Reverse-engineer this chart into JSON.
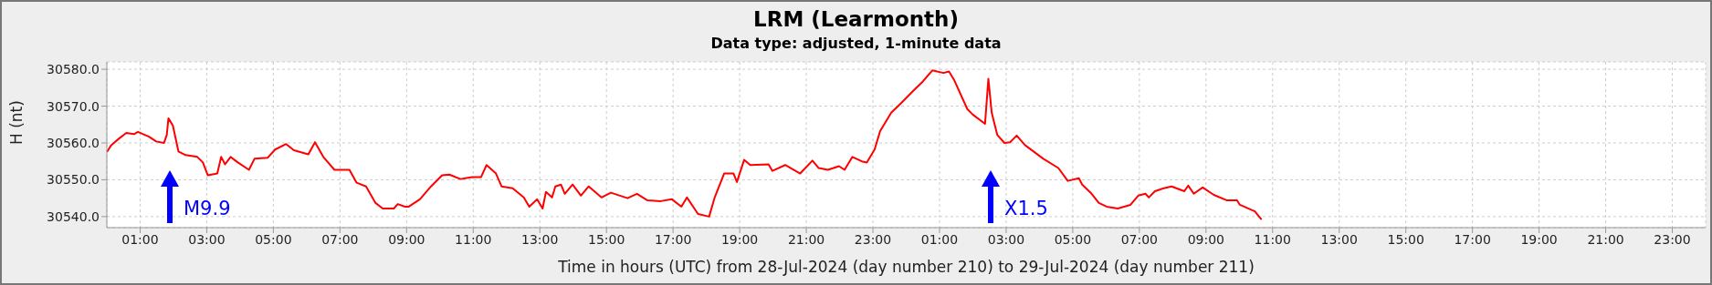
{
  "chart_data": {
    "type": "line",
    "title": "LRM (Learmonth)",
    "subtitle": "Data type: adjusted, 1-minute data",
    "xlabel": "Time in hours (UTC) from 28-Jul-2024 (day number 210) to 29-Jul-2024 (day number 211)",
    "ylabel": "H (nt)",
    "x": [
      "2024-07-28T00:00",
      "2024-07-28T00:08",
      "2024-07-28T00:22",
      "2024-07-28T00:35",
      "2024-07-28T00:49",
      "2024-07-28T00:56",
      "2024-07-28T01:16",
      "2024-07-28T01:29",
      "2024-07-28T01:43",
      "2024-07-28T01:48",
      "2024-07-28T01:51",
      "2024-07-28T01:59",
      "2024-07-28T02:09",
      "2024-07-28T02:22",
      "2024-07-28T02:43",
      "2024-07-28T02:53",
      "2024-07-28T03:02",
      "2024-07-28T03:19",
      "2024-07-28T03:26",
      "2024-07-28T03:33",
      "2024-07-28T03:43",
      "2024-07-28T03:56",
      "2024-07-28T04:16",
      "2024-07-28T04:26",
      "2024-07-28T04:50",
      "2024-07-28T05:03",
      "2024-07-28T05:23",
      "2024-07-28T05:37",
      "2024-07-28T06:03",
      "2024-07-28T06:15",
      "2024-07-28T06:30",
      "2024-07-28T06:50",
      "2024-07-28T07:17",
      "2024-07-28T07:30",
      "2024-07-28T07:47",
      "2024-07-28T08:04",
      "2024-07-28T08:17",
      "2024-07-28T08:37",
      "2024-07-28T08:44",
      "2024-07-28T08:57",
      "2024-07-28T09:04",
      "2024-07-28T09:24",
      "2024-07-28T09:44",
      "2024-07-28T10:04",
      "2024-07-28T10:17",
      "2024-07-28T10:37",
      "2024-07-28T10:58",
      "2024-07-28T11:14",
      "2024-07-28T11:24",
      "2024-07-28T11:41",
      "2024-07-28T11:51",
      "2024-07-28T12:11",
      "2024-07-28T12:31",
      "2024-07-28T12:41",
      "2024-07-28T12:55",
      "2024-07-28T13:05",
      "2024-07-28T13:11",
      "2024-07-28T13:22",
      "2024-07-28T13:28",
      "2024-07-28T13:38",
      "2024-07-28T13:45",
      "2024-07-28T13:59",
      "2024-07-28T14:14",
      "2024-07-28T14:28",
      "2024-07-28T14:51",
      "2024-07-28T15:08",
      "2024-07-28T15:38",
      "2024-07-28T15:55",
      "2024-07-28T16:14",
      "2024-07-28T16:38",
      "2024-07-28T16:58",
      "2024-07-28T17:15",
      "2024-07-28T17:25",
      "2024-07-28T17:45",
      "2024-07-28T18:05",
      "2024-07-28T18:15",
      "2024-07-28T18:32",
      "2024-07-28T18:49",
      "2024-07-28T18:55",
      "2024-07-28T19:08",
      "2024-07-28T19:19",
      "2024-07-28T19:52",
      "2024-07-28T19:59",
      "2024-07-28T20:22",
      "2024-07-28T20:49",
      "2024-07-28T21:11",
      "2024-07-28T21:22",
      "2024-07-28T21:39",
      "2024-07-28T21:59",
      "2024-07-28T22:09",
      "2024-07-28T22:23",
      "2024-07-28T22:40",
      "2024-07-28T22:49",
      "2024-07-28T23:03",
      "2024-07-28T23:13",
      "2024-07-28T23:33",
      "2024-07-28T23:50",
      "2024-07-29T00:13",
      "2024-07-29T00:30",
      "2024-07-29T00:47",
      "2024-07-29T01:07",
      "2024-07-29T01:17",
      "2024-07-29T01:26",
      "2024-07-29T01:50",
      "2024-07-29T02:00",
      "2024-07-29T02:22",
      "2024-07-29T02:28",
      "2024-07-29T02:34",
      "2024-07-29T02:44",
      "2024-07-29T02:57",
      "2024-07-29T03:07",
      "2024-07-29T03:19",
      "2024-07-29T03:34",
      "2024-07-29T04:07",
      "2024-07-29T04:34",
      "2024-07-29T04:51",
      "2024-07-29T05:11",
      "2024-07-29T05:17",
      "2024-07-29T05:34",
      "2024-07-29T05:47",
      "2024-07-29T06:01",
      "2024-07-29T06:21",
      "2024-07-29T06:44",
      "2024-07-29T06:58",
      "2024-07-29T07:11",
      "2024-07-29T07:17",
      "2024-07-29T07:28",
      "2024-07-29T07:44",
      "2024-07-29T07:58",
      "2024-07-29T08:21",
      "2024-07-29T08:28",
      "2024-07-29T08:38",
      "2024-07-29T08:54",
      "2024-07-29T09:14",
      "2024-07-29T09:38",
      "2024-07-29T09:56",
      "2024-07-29T10:01",
      "2024-07-29T10:28",
      "2024-07-29T10:40"
    ],
    "values": [
      30557.5,
      30559.4,
      30561.2,
      30562.7,
      30562.4,
      30563,
      30561.7,
      30560.4,
      30560,
      30562.2,
      30566.7,
      30564.7,
      30557.7,
      30556.7,
      30556.2,
      30554.7,
      30551.2,
      30551.7,
      30556.2,
      30554.2,
      30556.2,
      30554.7,
      30552.7,
      30555.7,
      30556,
      30558.2,
      30559.7,
      30558,
      30556.9,
      30560.2,
      30556.2,
      30552.7,
      30552.7,
      30549.2,
      30548.2,
      30543.7,
      30542.2,
      30542.2,
      30543.4,
      30542.7,
      30542.7,
      30544.7,
      30548.2,
      30551.2,
      30551.4,
      30550.2,
      30550.7,
      30550.7,
      30554,
      30551.7,
      30548.2,
      30547.7,
      30545.2,
      30542.7,
      30544.7,
      30542.2,
      30546.7,
      30545.2,
      30548.2,
      30548.7,
      30546.2,
      30548.7,
      30545.7,
      30548.2,
      30545.2,
      30546.5,
      30545,
      30546.2,
      30544.4,
      30544.2,
      30544.7,
      30542.7,
      30545.2,
      30540.7,
      30540,
      30545.2,
      30551.7,
      30551.7,
      30549.4,
      30555.4,
      30554,
      30554.2,
      30552.4,
      30554,
      30551.7,
      30555.2,
      30553.2,
      30552.7,
      30553.7,
      30552.7,
      30556.2,
      30555,
      30554.7,
      30558.2,
      30563.2,
      30568.2,
      30570.7,
      30574.2,
      30576.7,
      30579.7,
      30579,
      30579.4,
      30577.2,
      30569.2,
      30567.7,
      30565.2,
      30577.4,
      30568.2,
      30562.2,
      30560,
      30560.2,
      30562,
      30559.4,
      30555.7,
      30553.2,
      30549.7,
      30550.4,
      30548.7,
      30546.2,
      30543.7,
      30542.7,
      30542.2,
      30543.2,
      30545.7,
      30546.2,
      30545.2,
      30546.9,
      30547.7,
      30548.2,
      30546.9,
      30548.4,
      30546.2,
      30547.9,
      30545.9,
      30544.4,
      30544.4,
      30543.2,
      30541.4,
      30539.2
    ],
    "color": "#ff0000",
    "marker": "none",
    "grid": true,
    "xlim": [
      "2024-07-28T00:00",
      "2024-07-30T00:00"
    ],
    "xticks": [
      {
        "value": "2024-07-28T01:00",
        "label": "01:00"
      },
      {
        "value": "2024-07-28T03:00",
        "label": "03:00"
      },
      {
        "value": "2024-07-28T05:00",
        "label": "05:00"
      },
      {
        "value": "2024-07-28T07:00",
        "label": "07:00"
      },
      {
        "value": "2024-07-28T09:00",
        "label": "09:00"
      },
      {
        "value": "2024-07-28T11:00",
        "label": "11:00"
      },
      {
        "value": "2024-07-28T13:00",
        "label": "13:00"
      },
      {
        "value": "2024-07-28T15:00",
        "label": "15:00"
      },
      {
        "value": "2024-07-28T17:00",
        "label": "17:00"
      },
      {
        "value": "2024-07-28T19:00",
        "label": "19:00"
      },
      {
        "value": "2024-07-28T21:00",
        "label": "21:00"
      },
      {
        "value": "2024-07-28T23:00",
        "label": "23:00"
      },
      {
        "value": "2024-07-29T01:00",
        "label": "01:00"
      },
      {
        "value": "2024-07-29T03:00",
        "label": "03:00"
      },
      {
        "value": "2024-07-29T05:00",
        "label": "05:00"
      },
      {
        "value": "2024-07-29T07:00",
        "label": "07:00"
      },
      {
        "value": "2024-07-29T09:00",
        "label": "09:00"
      },
      {
        "value": "2024-07-29T11:00",
        "label": "11:00"
      },
      {
        "value": "2024-07-29T13:00",
        "label": "13:00"
      },
      {
        "value": "2024-07-29T15:00",
        "label": "15:00"
      },
      {
        "value": "2024-07-29T17:00",
        "label": "17:00"
      },
      {
        "value": "2024-07-29T19:00",
        "label": "19:00"
      },
      {
        "value": "2024-07-29T21:00",
        "label": "21:00"
      },
      {
        "value": "2024-07-29T23:00",
        "label": "23:00"
      }
    ],
    "ylim": [
      30537,
      30582
    ],
    "yticks": [
      {
        "value": 30540,
        "label": "30540.0"
      },
      {
        "value": 30550,
        "label": "30550.0"
      },
      {
        "value": 30560,
        "label": "30560.0"
      },
      {
        "value": 30570,
        "label": "30570.0"
      },
      {
        "value": 30580,
        "label": "30580.0"
      }
    ],
    "annotations": [
      "M9.9",
      "X1.5"
    ]
  }
}
